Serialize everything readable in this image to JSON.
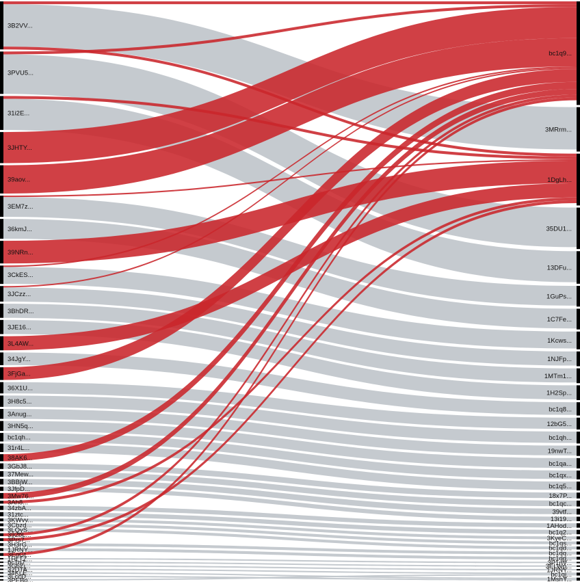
{
  "colors": {
    "flow_gray": "#c2c7cc",
    "flow_red": "#c9262b",
    "node_bar": "#000000",
    "label_text": "#111111"
  },
  "left_nodes": [
    "3B2VV...",
    "3PVU5...",
    "31i2E...",
    "3JHTY...",
    "39aov...",
    "3EM7z...",
    "36kmJ...",
    "39NRn...",
    "3CkES...",
    "3JCzz...",
    "3BhDR...",
    "3JE16...",
    "3L4AW...",
    "34JgY...",
    "3FjGa...",
    "36X1U...",
    "3H8c5...",
    "3Anug...",
    "3HN5q...",
    "bc1qh...",
    "31r4L...",
    "38AK6...",
    "3GbJ8...",
    "37Mew...",
    "3BBjW...",
    "3JfpD...",
    "3Mw76...",
    "3Ah8...",
    "34zbA...",
    "31ztc...",
    "3KWvv...",
    "3Cbzd...",
    "3LQyS...",
    "392bL...",
    "3Prs7...",
    "3H3rG...",
    "1JRNY...",
    "3EgGt...",
    "1HLTZ...",
    "bc1q7...",
    "3G6Zj...",
    "32DTA...",
    "34KLE...",
    "3LccD...",
    "3PEBo..."
  ],
  "right_nodes": [
    "bc1q9...",
    "3MRrm...",
    "1DgLh...",
    "35DU1...",
    "13DFu...",
    "1GuPs...",
    "1C7Fe...",
    "1Kcws...",
    "1NJFp...",
    "1MTm1...",
    "1H2Sp...",
    "bc1q8...",
    "12bG5...",
    "bc1qh...",
    "19nwT...",
    "bc1qa...",
    "bc1qx...",
    "bc1q5...",
    "18x7P...",
    "bc1qc...",
    "39vtf...",
    "13i19...",
    "1AHod...",
    "bc1q2...",
    "3KyeC...",
    "bc1qs...",
    "bc1qd...",
    "bc1qq...",
    "bc1qg...",
    "3P1nV...",
    "3ELWp...",
    "1JRNY...",
    "bc1qj...",
    "1MshY..."
  ],
  "flows": [
    {
      "source": "3B2VV...",
      "target": "3MRrm...",
      "value": 30,
      "highlight": false
    },
    {
      "source": "3B2VV...",
      "target": "bc1q9...",
      "value": 2,
      "highlight": true
    },
    {
      "source": "3B2VV...",
      "target": "1DgLh...",
      "value": 2,
      "highlight": true
    },
    {
      "source": "3PVU5...",
      "target": "35DU1...",
      "value": 28,
      "highlight": false
    },
    {
      "source": "3PVU5...",
      "target": "bc1q9...",
      "value": 2,
      "highlight": true
    },
    {
      "source": "31i2E...",
      "target": "13DFu...",
      "value": 22,
      "highlight": false
    },
    {
      "source": "31i2E...",
      "target": "1DgLh...",
      "value": 2,
      "highlight": true
    },
    {
      "source": "3JHTY...",
      "target": "bc1q9...",
      "value": 22,
      "highlight": true
    },
    {
      "source": "39aov...",
      "target": "bc1q9...",
      "value": 20,
      "highlight": true
    },
    {
      "source": "3EM7z...",
      "target": "1GuPs...",
      "value": 14,
      "highlight": false
    },
    {
      "source": "3EM7z...",
      "target": "1DgLh...",
      "value": 1,
      "highlight": true
    },
    {
      "source": "36kmJ...",
      "target": "1C7Fe...",
      "value": 14,
      "highlight": false
    },
    {
      "source": "39NRn...",
      "target": "1DgLh...",
      "value": 16,
      "highlight": true
    },
    {
      "source": "3CkES...",
      "target": "1Kcws...",
      "value": 12,
      "highlight": false
    },
    {
      "source": "3CkES...",
      "target": "bc1q9...",
      "value": 1,
      "highlight": true
    },
    {
      "source": "3JCzz...",
      "target": "1NJFp...",
      "value": 10,
      "highlight": false
    },
    {
      "source": "3JCzz...",
      "target": "bc1q9...",
      "value": 1,
      "highlight": true
    },
    {
      "source": "3BhDR...",
      "target": "1MTm1...",
      "value": 10,
      "highlight": false
    },
    {
      "source": "3JE16...",
      "target": "1H2Sp...",
      "value": 10,
      "highlight": false
    },
    {
      "source": "3L4AW...",
      "target": "1DgLh...",
      "value": 10,
      "highlight": true
    },
    {
      "source": "34JgY...",
      "target": "bc1q8...",
      "value": 9,
      "highlight": false
    },
    {
      "source": "3FjGa...",
      "target": "bc1q9...",
      "value": 9,
      "highlight": true
    },
    {
      "source": "36X1U...",
      "target": "12bG5...",
      "value": 8,
      "highlight": false
    },
    {
      "source": "3H8c5...",
      "target": "bc1qh...",
      "value": 8,
      "highlight": false
    },
    {
      "source": "3Anug...",
      "target": "19nwT...",
      "value": 7,
      "highlight": false
    },
    {
      "source": "3HN5q...",
      "target": "bc1qa...",
      "value": 7,
      "highlight": false
    },
    {
      "source": "bc1qh...",
      "target": "bc1qx...",
      "value": 6,
      "highlight": false
    },
    {
      "source": "31r4L...",
      "target": "bc1q5...",
      "value": 6,
      "highlight": false
    },
    {
      "source": "38AK6...",
      "target": "bc1q9...",
      "value": 5,
      "highlight": true
    },
    {
      "source": "3GbJ8...",
      "target": "18x7P...",
      "value": 4,
      "highlight": false
    },
    {
      "source": "37Mew...",
      "target": "bc1qc...",
      "value": 4,
      "highlight": false
    },
    {
      "source": "3BBjW...",
      "target": "39vtf...",
      "value": 4,
      "highlight": false
    },
    {
      "source": "3JfpD...",
      "target": "13i19...",
      "value": 3,
      "highlight": false
    },
    {
      "source": "3Mw76...",
      "target": "bc1q9...",
      "value": 4,
      "highlight": true
    },
    {
      "source": "3Ah8...",
      "target": "1DgLh...",
      "value": 2,
      "highlight": true
    },
    {
      "source": "34zbA...",
      "target": "1AHod...",
      "value": 3,
      "highlight": false
    },
    {
      "source": "31ztc...",
      "target": "bc1q2...",
      "value": 3,
      "highlight": false
    },
    {
      "source": "3KWvv...",
      "target": "3KyeC...",
      "value": 2,
      "highlight": false
    },
    {
      "source": "3Cbzd...",
      "target": "bc1qs...",
      "value": 2,
      "highlight": false
    },
    {
      "source": "3LQyS...",
      "target": "bc1qd...",
      "value": 2,
      "highlight": false
    },
    {
      "source": "392bL...",
      "target": "bc1q9...",
      "value": 2,
      "highlight": true
    },
    {
      "source": "3Prs7...",
      "target": "1DgLh...",
      "value": 2,
      "highlight": true
    },
    {
      "source": "3H3rG...",
      "target": "bc1qq...",
      "value": 2,
      "highlight": false
    },
    {
      "source": "1JRNY...",
      "target": "bc1qg...",
      "value": 2,
      "highlight": false
    },
    {
      "source": "3EgGt...",
      "target": "bc1q9...",
      "value": 2,
      "highlight": true
    },
    {
      "source": "1HLTZ...",
      "target": "3P1nV...",
      "value": 1,
      "highlight": false
    },
    {
      "source": "bc1q7...",
      "target": "3ELWp...",
      "value": 1,
      "highlight": false
    },
    {
      "source": "3G6Zj...",
      "target": "1JRNY...",
      "value": 1,
      "highlight": false
    },
    {
      "source": "32DTA...",
      "target": "bc1qj...",
      "value": 1,
      "highlight": false
    },
    {
      "source": "34KLE...",
      "target": "1MshY...",
      "value": 1,
      "highlight": false
    },
    {
      "source": "3LccD...",
      "target": "1MshY...",
      "value": 1,
      "highlight": false
    },
    {
      "source": "3PEBo...",
      "target": "bc1qj...",
      "value": 1,
      "highlight": false
    }
  ]
}
